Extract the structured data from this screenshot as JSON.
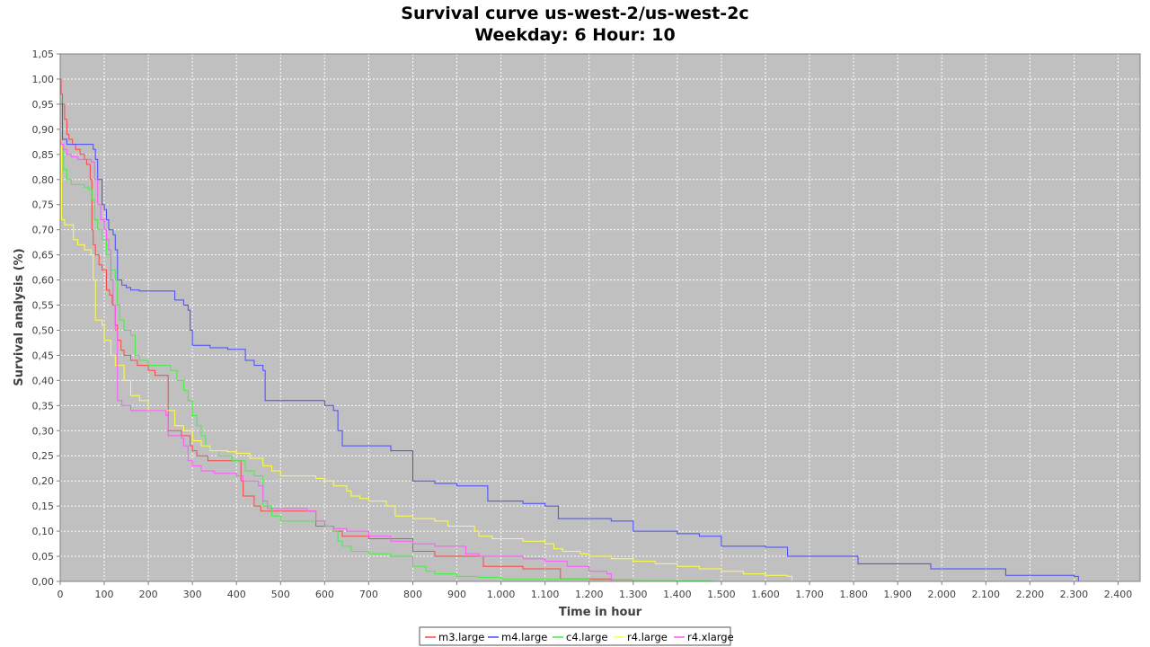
{
  "chart_data": {
    "type": "line",
    "step": true,
    "title": "Survival curve us-west-2/us-west-2c",
    "subtitle": "Weekday: 6 Hour: 10",
    "xlabel": "Time in hour",
    "ylabel": "Survival analysis (%)",
    "xlim": [
      0,
      2450
    ],
    "ylim": [
      0,
      1.05
    ],
    "x_ticks": [
      "0",
      "100",
      "200",
      "300",
      "400",
      "500",
      "600",
      "700",
      "800",
      "900",
      "1.000",
      "1.100",
      "1.200",
      "1.300",
      "1.400",
      "1.500",
      "1.600",
      "1.700",
      "1.800",
      "1.900",
      "2.000",
      "2.100",
      "2.200",
      "2.300",
      "2.400"
    ],
    "y_ticks": [
      "0,00",
      "0,05",
      "0,10",
      "0,15",
      "0,20",
      "0,25",
      "0,30",
      "0,35",
      "0,40",
      "0,45",
      "0,50",
      "0,55",
      "0,60",
      "0,65",
      "0,70",
      "0,75",
      "0,80",
      "0,85",
      "0,90",
      "0,95",
      "1,00",
      "1,05"
    ],
    "grid": true,
    "plot_background": "#c0c0c0",
    "legend_position": "bottom",
    "series": [
      {
        "name": "m3.large",
        "color": "#ff4444",
        "x": [
          0,
          2,
          5,
          10,
          15,
          20,
          28,
          35,
          45,
          55,
          60,
          68,
          72,
          75,
          80,
          88,
          95,
          105,
          112,
          118,
          125,
          130,
          138,
          145,
          160,
          175,
          185,
          200,
          215,
          240,
          245,
          275,
          295,
          300,
          310,
          335,
          350,
          410,
          415,
          440,
          455,
          470,
          540,
          580,
          620,
          640,
          700,
          750,
          800,
          850,
          900,
          960,
          1000,
          1050,
          1100,
          1135,
          1200,
          1250,
          1300
        ],
        "y": [
          1.0,
          0.97,
          0.95,
          0.92,
          0.89,
          0.88,
          0.87,
          0.86,
          0.85,
          0.84,
          0.83,
          0.8,
          0.7,
          0.67,
          0.65,
          0.63,
          0.62,
          0.58,
          0.57,
          0.55,
          0.51,
          0.48,
          0.46,
          0.45,
          0.44,
          0.43,
          0.43,
          0.42,
          0.41,
          0.41,
          0.3,
          0.29,
          0.27,
          0.26,
          0.25,
          0.24,
          0.24,
          0.2,
          0.17,
          0.15,
          0.14,
          0.14,
          0.14,
          0.11,
          0.1,
          0.09,
          0.085,
          0.085,
          0.06,
          0.05,
          0.05,
          0.03,
          0.03,
          0.025,
          0.025,
          0.005,
          0.005,
          0.003,
          0.0
        ]
      },
      {
        "name": "m4.large",
        "color": "#4848ff",
        "x": [
          0,
          5,
          15,
          35,
          60,
          75,
          80,
          85,
          95,
          100,
          105,
          110,
          115,
          120,
          125,
          130,
          140,
          150,
          160,
          170,
          180,
          200,
          230,
          260,
          280,
          290,
          295,
          300,
          340,
          380,
          400,
          420,
          440,
          460,
          465,
          580,
          600,
          620,
          630,
          640,
          700,
          750,
          780,
          800,
          850,
          900,
          950,
          970,
          1000,
          1050,
          1100,
          1130,
          1200,
          1250,
          1300,
          1400,
          1450,
          1480,
          1500,
          1600,
          1650,
          1700,
          1800,
          1810,
          1900,
          1975,
          2000,
          2050,
          2100,
          2145,
          2200,
          2250,
          2300,
          2310
        ],
        "y": [
          0.95,
          0.88,
          0.87,
          0.87,
          0.87,
          0.86,
          0.84,
          0.8,
          0.75,
          0.74,
          0.72,
          0.7,
          0.7,
          0.69,
          0.66,
          0.6,
          0.59,
          0.585,
          0.58,
          0.58,
          0.578,
          0.578,
          0.578,
          0.56,
          0.55,
          0.54,
          0.5,
          0.47,
          0.465,
          0.462,
          0.462,
          0.44,
          0.43,
          0.42,
          0.36,
          0.36,
          0.35,
          0.34,
          0.3,
          0.27,
          0.27,
          0.26,
          0.26,
          0.2,
          0.195,
          0.19,
          0.19,
          0.16,
          0.16,
          0.155,
          0.15,
          0.125,
          0.125,
          0.12,
          0.1,
          0.095,
          0.09,
          0.09,
          0.07,
          0.068,
          0.05,
          0.05,
          0.05,
          0.035,
          0.035,
          0.025,
          0.025,
          0.025,
          0.025,
          0.012,
          0.012,
          0.012,
          0.01,
          0.0
        ]
      },
      {
        "name": "c4.large",
        "color": "#44ee44",
        "x": [
          0,
          3,
          8,
          15,
          25,
          40,
          55,
          65,
          72,
          78,
          85,
          95,
          105,
          115,
          125,
          130,
          135,
          145,
          160,
          170,
          180,
          200,
          220,
          250,
          265,
          280,
          290,
          300,
          310,
          320,
          330,
          340,
          360,
          390,
          420,
          440,
          460,
          480,
          500,
          540,
          580,
          600,
          620,
          630,
          640,
          660,
          700,
          750,
          800,
          830,
          850,
          900,
          950,
          1000,
          1100,
          1200,
          1300,
          1400,
          1450,
          1480
        ],
        "y": [
          0.88,
          0.86,
          0.82,
          0.8,
          0.79,
          0.79,
          0.785,
          0.78,
          0.76,
          0.72,
          0.7,
          0.68,
          0.65,
          0.62,
          0.6,
          0.55,
          0.52,
          0.5,
          0.49,
          0.45,
          0.44,
          0.43,
          0.43,
          0.42,
          0.4,
          0.38,
          0.36,
          0.33,
          0.31,
          0.29,
          0.27,
          0.26,
          0.25,
          0.24,
          0.22,
          0.21,
          0.15,
          0.13,
          0.12,
          0.12,
          0.12,
          0.11,
          0.1,
          0.08,
          0.07,
          0.06,
          0.055,
          0.05,
          0.03,
          0.02,
          0.015,
          0.01,
          0.008,
          0.005,
          0.005,
          0.003,
          0.002,
          0.001,
          0.001,
          0.0
        ]
      },
      {
        "name": "r4.large",
        "color": "#ffff44",
        "x": [
          0,
          3,
          10,
          30,
          40,
          55,
          70,
          75,
          80,
          95,
          100,
          115,
          125,
          145,
          160,
          180,
          200,
          245,
          260,
          280,
          300,
          320,
          340,
          380,
          400,
          430,
          460,
          480,
          500,
          580,
          600,
          620,
          650,
          660,
          680,
          700,
          740,
          760,
          800,
          850,
          880,
          900,
          940,
          950,
          980,
          1000,
          1050,
          1100,
          1120,
          1140,
          1180,
          1200,
          1250,
          1300,
          1350,
          1400,
          1450,
          1500,
          1550,
          1600,
          1650,
          1660
        ],
        "y": [
          0.88,
          0.72,
          0.71,
          0.68,
          0.67,
          0.66,
          0.65,
          0.6,
          0.52,
          0.51,
          0.48,
          0.45,
          0.43,
          0.4,
          0.37,
          0.36,
          0.34,
          0.34,
          0.31,
          0.3,
          0.28,
          0.27,
          0.26,
          0.258,
          0.255,
          0.245,
          0.23,
          0.22,
          0.21,
          0.205,
          0.2,
          0.19,
          0.18,
          0.17,
          0.165,
          0.16,
          0.15,
          0.13,
          0.125,
          0.12,
          0.11,
          0.11,
          0.1,
          0.09,
          0.085,
          0.085,
          0.08,
          0.075,
          0.065,
          0.06,
          0.055,
          0.05,
          0.045,
          0.04,
          0.035,
          0.03,
          0.025,
          0.02,
          0.015,
          0.012,
          0.01,
          0.0
        ]
      },
      {
        "name": "r4.xlarge",
        "color": "#ff55ff",
        "x": [
          0,
          2,
          8,
          15,
          25,
          40,
          55,
          70,
          78,
          85,
          92,
          100,
          105,
          110,
          115,
          120,
          125,
          130,
          140,
          160,
          200,
          240,
          245,
          275,
          280,
          290,
          300,
          320,
          350,
          400,
          415,
          450,
          460,
          470,
          560,
          580,
          600,
          620,
          650,
          700,
          750,
          800,
          850,
          900,
          920,
          950,
          1000,
          1050,
          1100,
          1150,
          1200,
          1240,
          1250
        ],
        "y": [
          0.88,
          0.87,
          0.86,
          0.85,
          0.845,
          0.84,
          0.84,
          0.835,
          0.8,
          0.75,
          0.72,
          0.7,
          0.68,
          0.66,
          0.6,
          0.55,
          0.5,
          0.36,
          0.35,
          0.34,
          0.34,
          0.33,
          0.29,
          0.285,
          0.27,
          0.24,
          0.23,
          0.22,
          0.215,
          0.21,
          0.2,
          0.19,
          0.16,
          0.145,
          0.14,
          0.12,
          0.11,
          0.105,
          0.1,
          0.09,
          0.08,
          0.075,
          0.07,
          0.07,
          0.055,
          0.05,
          0.05,
          0.045,
          0.04,
          0.03,
          0.02,
          0.015,
          0.0
        ]
      }
    ]
  }
}
